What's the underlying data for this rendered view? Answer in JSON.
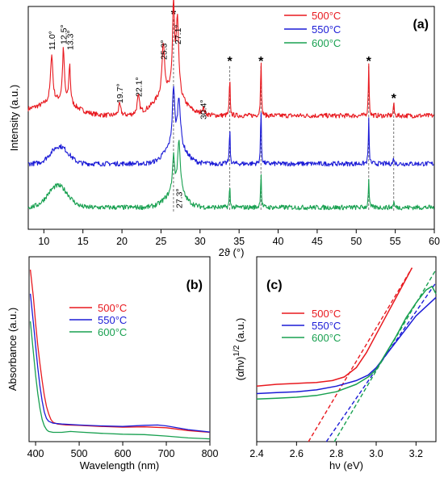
{
  "chart_data": [
    {
      "id": "a",
      "panel_label": "(a)",
      "type": "line",
      "xlabel": "2ϑ (°)",
      "ylabel": "Intensity (a.u.)",
      "xlim": [
        8,
        60
      ],
      "xticks": [
        10,
        15,
        20,
        25,
        30,
        35,
        40,
        45,
        50,
        55,
        60
      ],
      "y_ticks_shown": false,
      "legend_position": "top-right",
      "series": [
        {
          "name": "500°C",
          "color": "#e8191f",
          "baseline": 0.52,
          "peaks": [
            [
              11.0,
              0.22,
              0.35
            ],
            [
              12.5,
              0.24,
              0.3
            ],
            [
              13.3,
              0.18,
              0.25
            ],
            [
              19.7,
              0.05,
              0.35
            ],
            [
              22.1,
              0.08,
              0.35
            ],
            [
              25.3,
              0.24,
              0.4
            ],
            [
              26.6,
              0.4,
              0.3
            ],
            [
              27.1,
              0.34,
              0.4
            ],
            [
              30.4,
              0.03,
              0.4
            ],
            [
              33.8,
              0.18,
              0.12
            ],
            [
              37.8,
              0.28,
              0.12
            ],
            [
              51.6,
              0.25,
              0.12
            ],
            [
              54.8,
              0.06,
              0.12
            ]
          ],
          "humps": [
            [
              12.0,
              0.06,
              3.0
            ],
            [
              26.0,
              0.1,
              2.5
            ]
          ]
        },
        {
          "name": "550°C",
          "color": "#1b1bd6",
          "baseline": 0.3,
          "peaks": [
            [
              26.6,
              0.26,
              0.35
            ],
            [
              27.3,
              0.22,
              0.45
            ],
            [
              33.8,
              0.17,
              0.12
            ],
            [
              37.8,
              0.26,
              0.12
            ],
            [
              51.6,
              0.21,
              0.12
            ],
            [
              54.8,
              0.03,
              0.12
            ]
          ],
          "humps": [
            [
              12.0,
              0.08,
              1.6
            ],
            [
              26.8,
              0.08,
              1.8
            ]
          ]
        },
        {
          "name": "600°C",
          "color": "#18a050",
          "baseline": 0.1,
          "peaks": [
            [
              26.6,
              0.16,
              0.35
            ],
            [
              27.3,
              0.24,
              0.45
            ],
            [
              33.8,
              0.1,
              0.12
            ],
            [
              37.8,
              0.17,
              0.12
            ],
            [
              51.6,
              0.14,
              0.12
            ],
            [
              54.8,
              0.03,
              0.12
            ]
          ],
          "humps": [
            [
              11.8,
              0.1,
              1.8
            ],
            [
              26.8,
              0.06,
              1.8
            ]
          ]
        }
      ],
      "annotations": [
        "11.0°",
        "12.5°",
        "13.3°",
        "19.7°",
        "22.1°",
        "25.3°",
        "27.1°",
        "30.4°",
        "27.3°"
      ],
      "reference_lines": [
        26.6,
        33.8,
        37.8,
        51.6,
        54.8
      ],
      "reference_marker": "*"
    },
    {
      "id": "b",
      "panel_label": "(b)",
      "type": "line",
      "xlabel": "Wavelength (nm)",
      "ylabel": "Absorbance (a.u.)",
      "xlim": [
        385,
        800
      ],
      "xticks": [
        400,
        500,
        600,
        700,
        800
      ],
      "y_ticks_shown": false,
      "legend_position": "top-center",
      "series": [
        {
          "name": "500°C",
          "color": "#e8191f",
          "points": [
            [
              388,
              0.93
            ],
            [
              395,
              0.78
            ],
            [
              400,
              0.64
            ],
            [
              405,
              0.52
            ],
            [
              410,
              0.42
            ],
            [
              415,
              0.33
            ],
            [
              420,
              0.25
            ],
            [
              425,
              0.19
            ],
            [
              430,
              0.15
            ],
            [
              435,
              0.12
            ],
            [
              440,
              0.105
            ],
            [
              450,
              0.095
            ],
            [
              470,
              0.09
            ],
            [
              500,
              0.088
            ],
            [
              550,
              0.082
            ],
            [
              600,
              0.078
            ],
            [
              650,
              0.08
            ],
            [
              700,
              0.075
            ],
            [
              750,
              0.06
            ],
            [
              800,
              0.05
            ]
          ]
        },
        {
          "name": "550°C",
          "color": "#1b1bd6",
          "points": [
            [
              388,
              0.8
            ],
            [
              395,
              0.64
            ],
            [
              400,
              0.52
            ],
            [
              405,
              0.4
            ],
            [
              410,
              0.3
            ],
            [
              415,
              0.22
            ],
            [
              420,
              0.16
            ],
            [
              425,
              0.125
            ],
            [
              430,
              0.11
            ],
            [
              440,
              0.1
            ],
            [
              460,
              0.095
            ],
            [
              500,
              0.09
            ],
            [
              550,
              0.085
            ],
            [
              600,
              0.082
            ],
            [
              650,
              0.088
            ],
            [
              680,
              0.09
            ],
            [
              700,
              0.085
            ],
            [
              750,
              0.065
            ],
            [
              800,
              0.052
            ]
          ]
        },
        {
          "name": "600°C",
          "color": "#18a050",
          "points": [
            [
              388,
              0.65
            ],
            [
              395,
              0.48
            ],
            [
              400,
              0.36
            ],
            [
              405,
              0.26
            ],
            [
              410,
              0.18
            ],
            [
              415,
              0.12
            ],
            [
              420,
              0.085
            ],
            [
              425,
              0.065
            ],
            [
              430,
              0.055
            ],
            [
              440,
              0.05
            ],
            [
              460,
              0.05
            ],
            [
              480,
              0.055
            ],
            [
              500,
              0.052
            ],
            [
              550,
              0.045
            ],
            [
              600,
              0.04
            ],
            [
              650,
              0.038
            ],
            [
              700,
              0.03
            ],
            [
              750,
              0.02
            ],
            [
              800,
              0.015
            ]
          ]
        }
      ]
    },
    {
      "id": "c",
      "panel_label": "(c)",
      "type": "line",
      "xlabel": "hν (eV)",
      "ylabel": "(αhν)^1/2 (a.u.)",
      "ylabel_base": "(αhν)",
      "ylabel_sup": "1/2",
      "ylabel_unit": "(a.u.)",
      "xlim": [
        2.4,
        3.3
      ],
      "xticks": [
        2.4,
        2.6,
        2.8,
        3.0,
        3.2
      ],
      "y_ticks_shown": false,
      "legend_position": "center-left",
      "series": [
        {
          "name": "500°C",
          "color": "#e8191f",
          "points": [
            [
              2.4,
              0.3
            ],
            [
              2.5,
              0.31
            ],
            [
              2.6,
              0.315
            ],
            [
              2.7,
              0.32
            ],
            [
              2.78,
              0.33
            ],
            [
              2.84,
              0.35
            ],
            [
              2.9,
              0.4
            ],
            [
              2.95,
              0.48
            ],
            [
              3.0,
              0.58
            ],
            [
              3.05,
              0.68
            ],
            [
              3.1,
              0.78
            ],
            [
              3.15,
              0.88
            ],
            [
              3.18,
              0.94
            ]
          ],
          "fit": [
            [
              2.66,
              0.0
            ],
            [
              3.18,
              0.94
            ]
          ]
        },
        {
          "name": "550°C",
          "color": "#1b1bd6",
          "points": [
            [
              2.4,
              0.26
            ],
            [
              2.5,
              0.265
            ],
            [
              2.6,
              0.27
            ],
            [
              2.7,
              0.28
            ],
            [
              2.8,
              0.3
            ],
            [
              2.9,
              0.33
            ],
            [
              2.96,
              0.36
            ],
            [
              3.0,
              0.4
            ],
            [
              3.05,
              0.47
            ],
            [
              3.1,
              0.54
            ],
            [
              3.15,
              0.61
            ],
            [
              3.2,
              0.68
            ],
            [
              3.25,
              0.73
            ],
            [
              3.3,
              0.78
            ]
          ],
          "fit": [
            [
              2.75,
              0.0
            ],
            [
              3.3,
              0.86
            ]
          ]
        },
        {
          "name": "600°C",
          "color": "#18a050",
          "points": [
            [
              2.4,
              0.23
            ],
            [
              2.5,
              0.235
            ],
            [
              2.6,
              0.24
            ],
            [
              2.7,
              0.25
            ],
            [
              2.8,
              0.27
            ],
            [
              2.9,
              0.31
            ],
            [
              2.96,
              0.35
            ],
            [
              3.0,
              0.39
            ],
            [
              3.05,
              0.48
            ],
            [
              3.1,
              0.57
            ],
            [
              3.15,
              0.67
            ],
            [
              3.2,
              0.75
            ],
            [
              3.25,
              0.82
            ],
            [
              3.28,
              0.84
            ],
            [
              3.3,
              0.8
            ]
          ],
          "fit": [
            [
              2.79,
              0.0
            ],
            [
              3.3,
              0.93
            ]
          ]
        }
      ]
    }
  ]
}
